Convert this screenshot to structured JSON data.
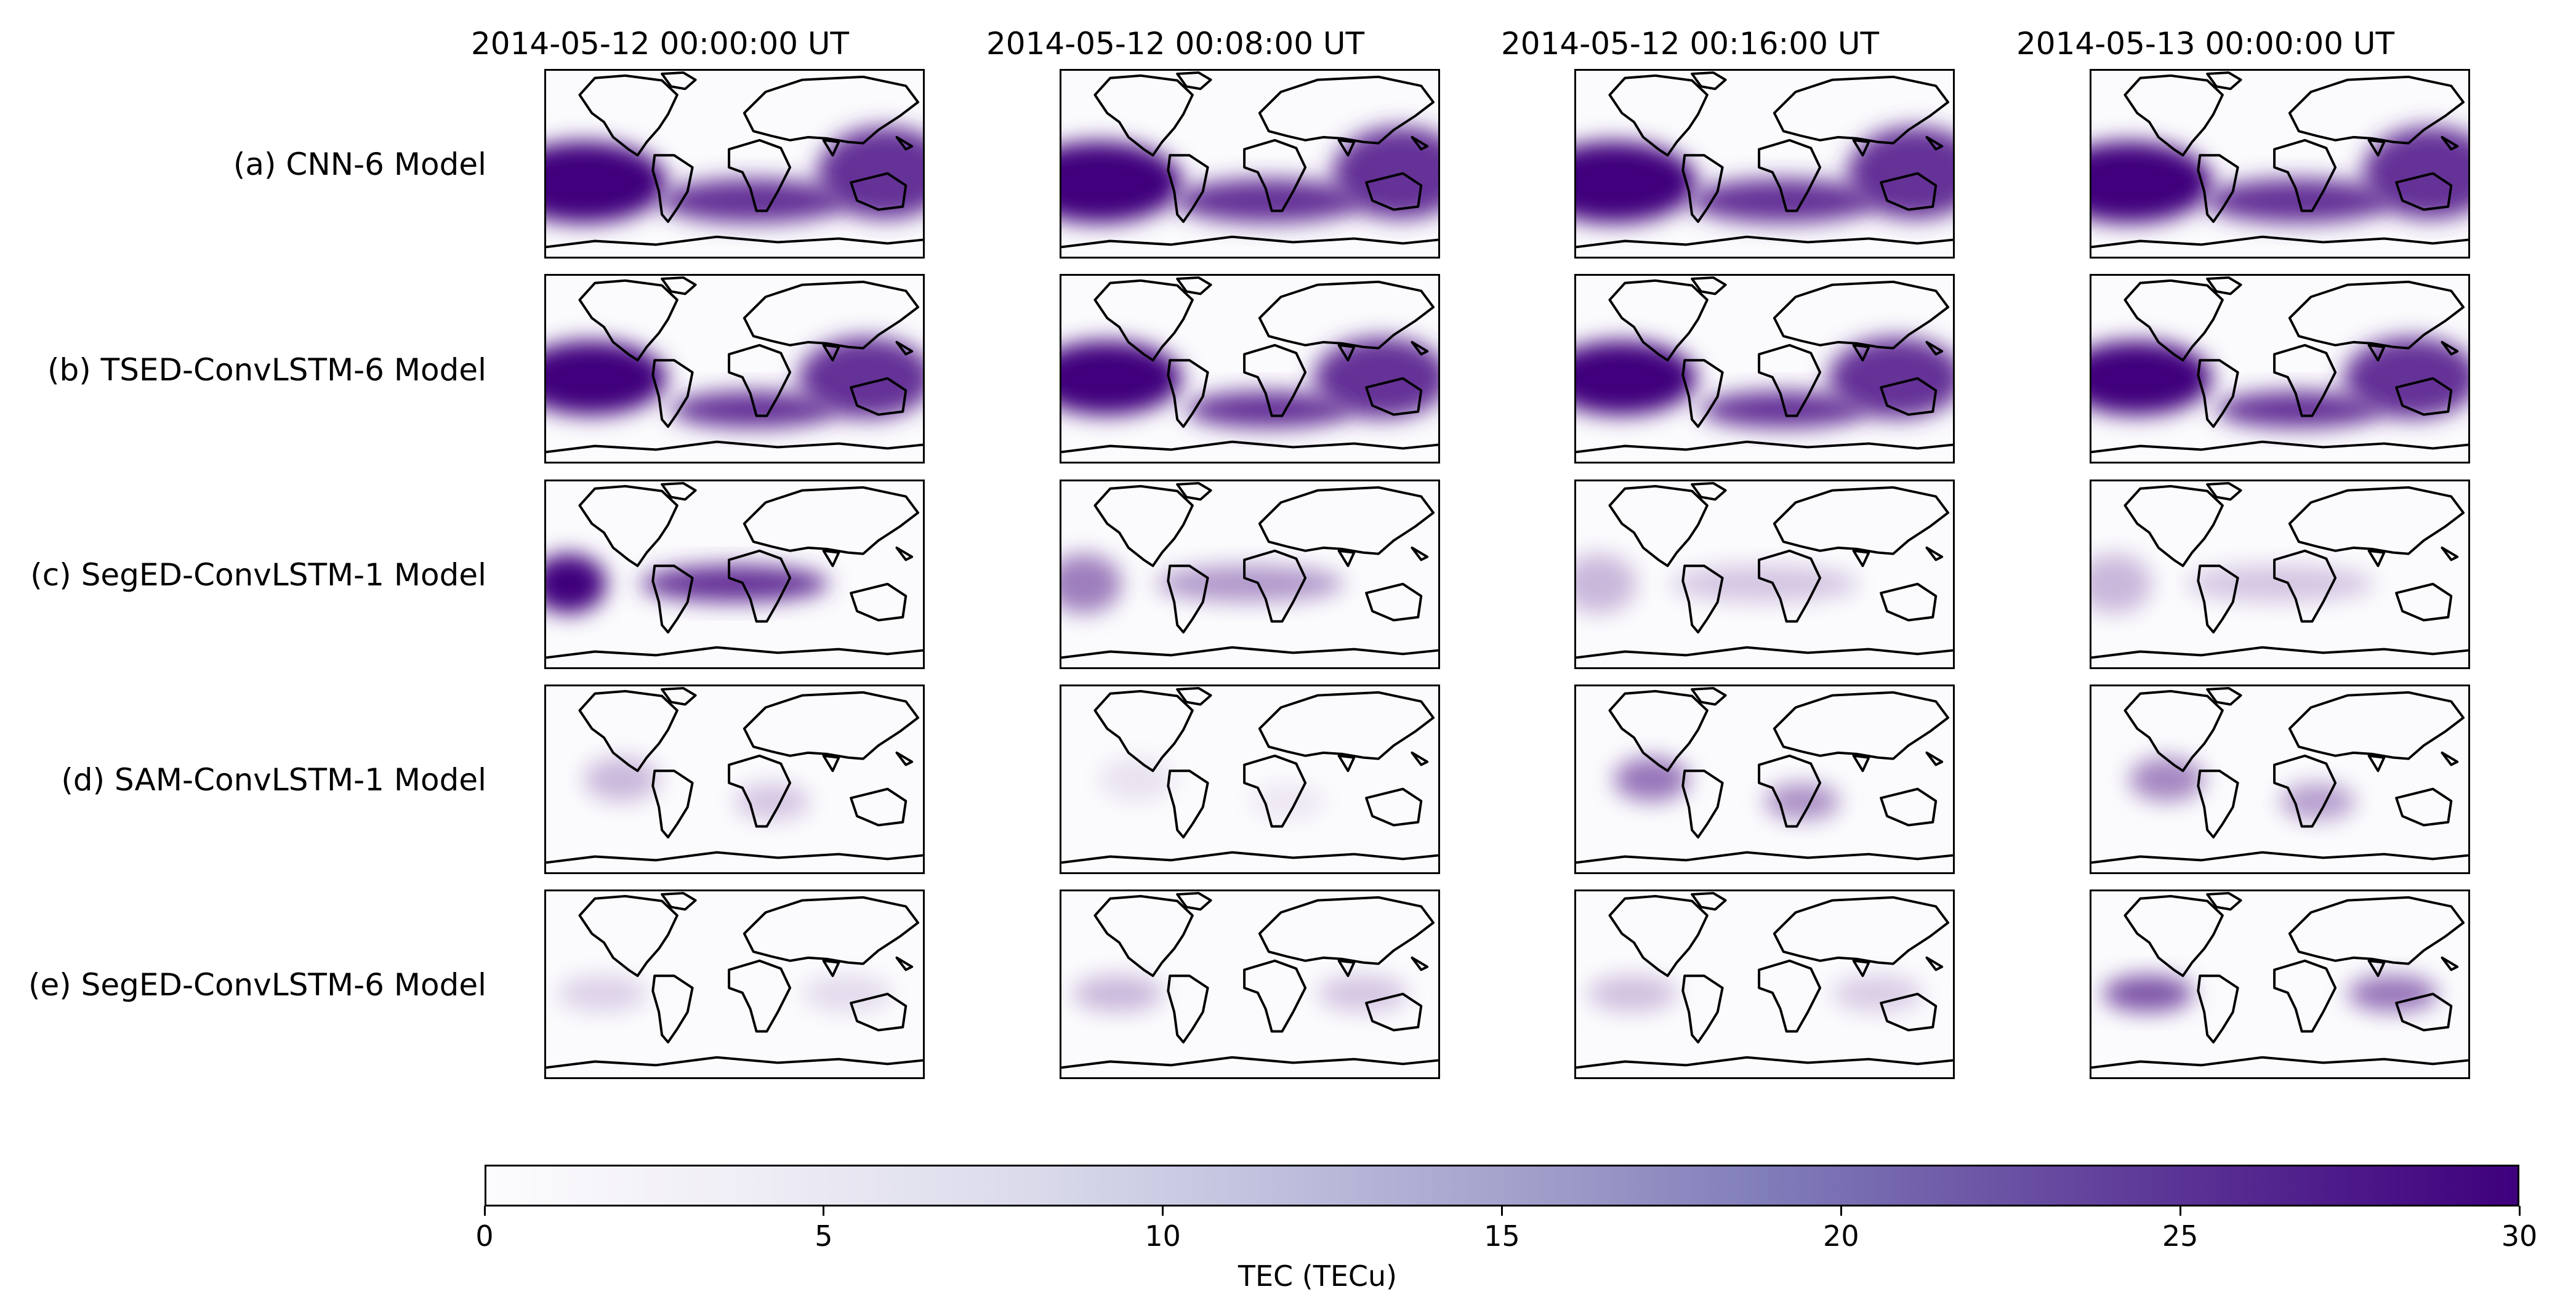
{
  "chart_data": {
    "type": "heatmap",
    "title": "",
    "variable": "TEC",
    "columns": [
      "2014-05-12 00:00:00 UT",
      "2014-05-12 00:08:00 UT",
      "2014-05-12 00:16:00 UT",
      "2014-05-13 00:00:00 UT"
    ],
    "rows": [
      "(a) CNN-6 Model",
      "(b) TSED-ConvLSTM-6 Model",
      "(c) SegED-ConvLSTM-1 Model",
      "(d) SAM-ConvLSTM-1 Model",
      "(e) SegED-ConvLSTM-6 Model"
    ],
    "colormap": "Purples",
    "colors": [
      "#fcfbfd",
      "#efedf5",
      "#dadaeb",
      "#bcbddc",
      "#9e9ac8",
      "#807dba",
      "#6a51a3",
      "#54278f",
      "#3f007d"
    ],
    "colorbar": {
      "label": "TEC (TECu)",
      "range": [
        0,
        30
      ],
      "ticks": [
        "0",
        "5",
        "10",
        "15",
        "20",
        "25",
        "30"
      ]
    },
    "peak_tec_estimates": [
      [
        30,
        30,
        30,
        30
      ],
      [
        30,
        30,
        30,
        30
      ],
      [
        30,
        15,
        8,
        8
      ],
      [
        8,
        3,
        16,
        14
      ],
      [
        5,
        8,
        7,
        20
      ]
    ]
  }
}
